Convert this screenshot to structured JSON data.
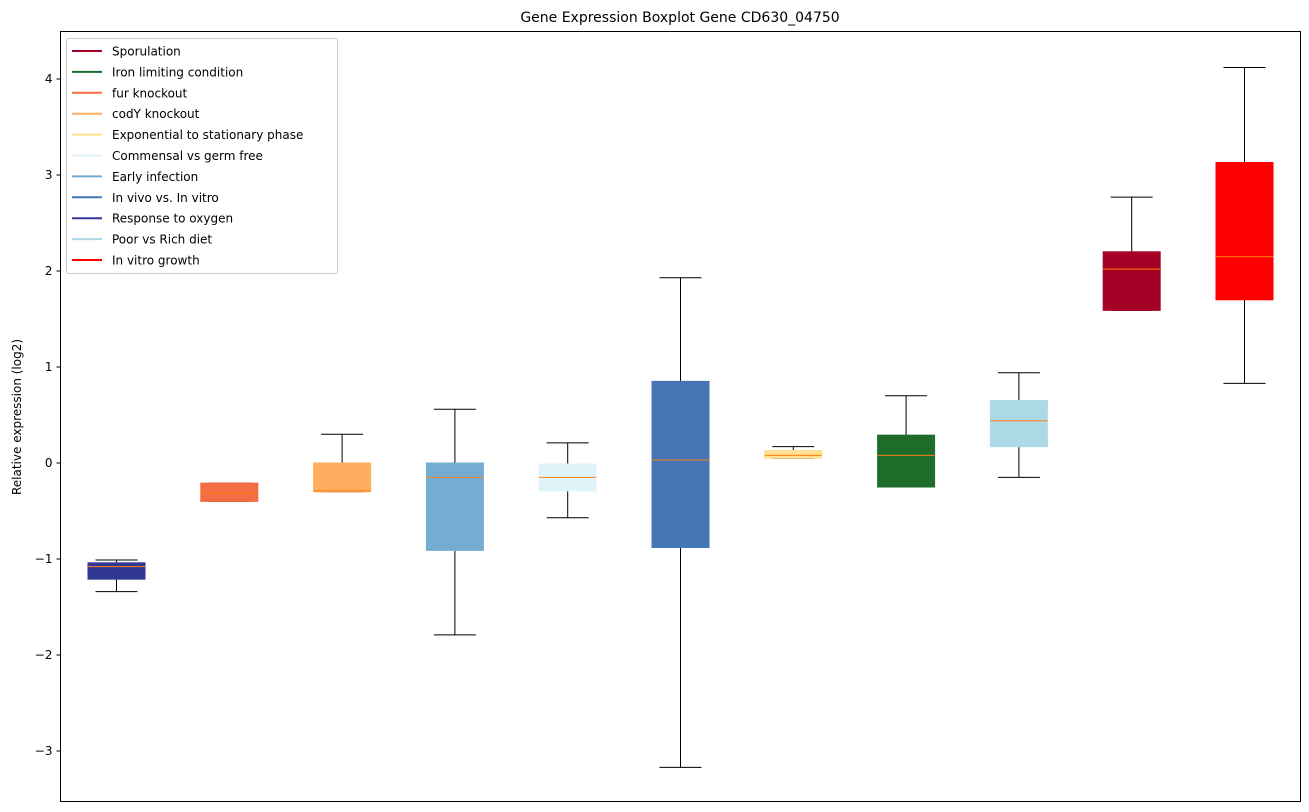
{
  "chart_data": {
    "type": "boxplot",
    "title": "Gene Expression Boxplot Gene CD630_04750",
    "xlabel": "",
    "ylabel": "Relative expression (log2)",
    "ylim": [
      -3.5,
      4.45
    ],
    "yticks": [
      -3,
      -2,
      -1,
      0,
      1,
      2,
      3,
      4
    ],
    "ytick_labels": [
      "−3",
      "−2",
      "−1",
      "0",
      "1",
      "2",
      "3",
      "4"
    ],
    "grid": false,
    "legend_position": "top-left",
    "legend": [
      {
        "label": "Sporulation",
        "color": "#a50026"
      },
      {
        "label": "Iron limiting condition",
        "color": "#1f6b2a"
      },
      {
        "label": "fur knockout",
        "color": "#f46d43"
      },
      {
        "label": "codY knockout",
        "color": "#fdae61"
      },
      {
        "label": "Exponential to stationary phase",
        "color": "#fee090"
      },
      {
        "label": "Commensal vs germ free",
        "color": "#e0f3f8"
      },
      {
        "label": "Early infection",
        "color": "#74add1"
      },
      {
        "label": "In vivo vs. In vitro",
        "color": "#4575b4"
      },
      {
        "label": "Response to oxygen",
        "color": "#313695"
      },
      {
        "label": "Poor vs Rich diet",
        "color": "#add8e6"
      },
      {
        "label": "In vitro growth",
        "color": "#ff0000"
      }
    ],
    "series": [
      {
        "name": "Response to oxygen",
        "color": "#313695",
        "whisker_low": -1.34,
        "q1": -1.21,
        "median": -1.08,
        "q3": -1.04,
        "whisker_high": -1.01
      },
      {
        "name": "fur knockout",
        "color": "#f46d43",
        "whisker_low": -0.4,
        "q1": -0.4,
        "median": -0.31,
        "q3": -0.21,
        "whisker_high": -0.21
      },
      {
        "name": "codY knockout",
        "color": "#fdae61",
        "whisker_low": -0.3,
        "q1": -0.3,
        "median": -0.29,
        "q3": 0.0,
        "whisker_high": 0.3
      },
      {
        "name": "Early infection",
        "color": "#74add1",
        "whisker_low": -1.79,
        "q1": -0.91,
        "median": -0.15,
        "q3": 0.0,
        "whisker_high": 0.56
      },
      {
        "name": "Commensal vs germ free",
        "color": "#e0f3f8",
        "whisker_low": -0.57,
        "q1": -0.29,
        "median": -0.15,
        "q3": -0.01,
        "whisker_high": 0.21
      },
      {
        "name": "In vivo vs. In vitro",
        "color": "#4575b4",
        "whisker_low": -3.17,
        "q1": -0.88,
        "median": 0.03,
        "q3": 0.85,
        "whisker_high": 1.93
      },
      {
        "name": "Exponential to stationary phase",
        "color": "#fee090",
        "whisker_low": 0.05,
        "q1": 0.05,
        "median": 0.08,
        "q3": 0.13,
        "whisker_high": 0.17
      },
      {
        "name": "Iron limiting condition",
        "color": "#1f6b2a",
        "whisker_low": -0.25,
        "q1": -0.25,
        "median": 0.08,
        "q3": 0.29,
        "whisker_high": 0.7
      },
      {
        "name": "Poor vs Rich diet",
        "color": "#add8e6",
        "whisker_low": -0.15,
        "q1": 0.17,
        "median": 0.44,
        "q3": 0.65,
        "whisker_high": 0.94
      },
      {
        "name": "Sporulation",
        "color": "#a50026",
        "whisker_low": 1.59,
        "q1": 1.59,
        "median": 2.02,
        "q3": 2.2,
        "whisker_high": 2.77
      },
      {
        "name": "In vitro growth",
        "color": "#ff0000",
        "whisker_low": 0.83,
        "q1": 1.7,
        "median": 2.15,
        "q3": 3.13,
        "whisker_high": 4.12
      }
    ],
    "median_color": "#ff7f0e"
  }
}
